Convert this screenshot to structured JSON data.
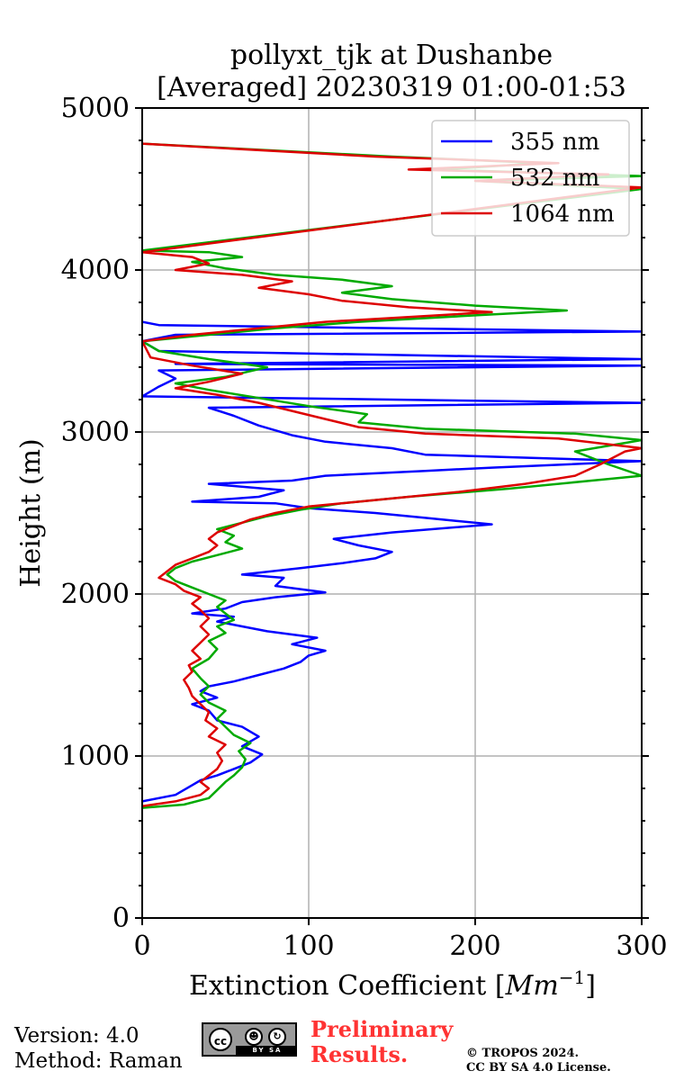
{
  "chart_data": {
    "type": "line",
    "title": [
      "pollyxt_tjk at Dushanbe",
      "[Averaged] 20230319 01:00-01:53"
    ],
    "xlabel": "Extinction Coefficient [",
    "xlabel_unit": "Mm",
    "xlabel_exp": "−1",
    "xlabel_end": "]",
    "ylabel": "Height (m)",
    "xlim": [
      0,
      300
    ],
    "ylim": [
      0,
      5000
    ],
    "xticks": [
      0,
      100,
      200,
      300
    ],
    "yticks": [
      0,
      1000,
      2000,
      3000,
      4000,
      5000
    ],
    "grid": true,
    "legend_position": "top-right",
    "series": [
      {
        "name": "355 nm",
        "color": "#0000ff",
        "points": [
          [
            0,
            720
          ],
          [
            20,
            760
          ],
          [
            30,
            820
          ],
          [
            35,
            850
          ],
          [
            45,
            880
          ],
          [
            55,
            920
          ],
          [
            65,
            960
          ],
          [
            72,
            1010
          ],
          [
            60,
            1060
          ],
          [
            70,
            1120
          ],
          [
            60,
            1180
          ],
          [
            45,
            1220
          ],
          [
            40,
            1280
          ],
          [
            30,
            1320
          ],
          [
            45,
            1360
          ],
          [
            35,
            1400
          ],
          [
            40,
            1430
          ],
          [
            55,
            1460
          ],
          [
            70,
            1500
          ],
          [
            85,
            1540
          ],
          [
            95,
            1580
          ],
          [
            100,
            1620
          ],
          [
            110,
            1650
          ],
          [
            90,
            1690
          ],
          [
            105,
            1730
          ],
          [
            75,
            1770
          ],
          [
            60,
            1800
          ],
          [
            45,
            1830
          ],
          [
            55,
            1860
          ],
          [
            30,
            1880
          ],
          [
            50,
            1910
          ],
          [
            60,
            1950
          ],
          [
            80,
            1980
          ],
          [
            110,
            2010
          ],
          [
            80,
            2050
          ],
          [
            85,
            2100
          ],
          [
            60,
            2120
          ],
          [
            95,
            2160
          ],
          [
            120,
            2190
          ],
          [
            140,
            2220
          ],
          [
            150,
            2260
          ],
          [
            130,
            2300
          ],
          [
            115,
            2340
          ],
          [
            150,
            2380
          ],
          [
            210,
            2430
          ],
          [
            170,
            2470
          ],
          [
            140,
            2500
          ],
          [
            100,
            2530
          ],
          [
            80,
            2560
          ],
          [
            30,
            2570
          ],
          [
            70,
            2600
          ],
          [
            85,
            2640
          ],
          [
            40,
            2680
          ],
          [
            90,
            2700
          ],
          [
            110,
            2730
          ],
          [
            170,
            2760
          ],
          [
            210,
            2780
          ],
          [
            300,
            2820
          ],
          [
            170,
            2860
          ],
          [
            150,
            2900
          ],
          [
            110,
            2940
          ],
          [
            90,
            2980
          ],
          [
            70,
            3040
          ],
          [
            55,
            3100
          ],
          [
            40,
            3150
          ],
          [
            300,
            3180
          ],
          [
            0,
            3220
          ],
          [
            10,
            3280
          ],
          [
            20,
            3330
          ],
          [
            10,
            3380
          ],
          [
            300,
            3410
          ],
          [
            20,
            3420
          ],
          [
            300,
            3450
          ],
          [
            10,
            3500
          ],
          [
            0,
            3560
          ],
          [
            20,
            3600
          ],
          [
            300,
            3620
          ],
          [
            10,
            3660
          ],
          [
            0,
            3680
          ]
        ]
      },
      {
        "name": "532 nm",
        "color": "#00aa00",
        "points": [
          [
            0,
            680
          ],
          [
            25,
            700
          ],
          [
            40,
            740
          ],
          [
            45,
            790
          ],
          [
            50,
            840
          ],
          [
            55,
            880
          ],
          [
            60,
            930
          ],
          [
            62,
            980
          ],
          [
            58,
            1030
          ],
          [
            65,
            1080
          ],
          [
            55,
            1130
          ],
          [
            50,
            1180
          ],
          [
            45,
            1230
          ],
          [
            50,
            1280
          ],
          [
            40,
            1330
          ],
          [
            35,
            1380
          ],
          [
            40,
            1430
          ],
          [
            35,
            1480
          ],
          [
            30,
            1540
          ],
          [
            40,
            1600
          ],
          [
            45,
            1660
          ],
          [
            40,
            1710
          ],
          [
            50,
            1760
          ],
          [
            45,
            1800
          ],
          [
            55,
            1840
          ],
          [
            50,
            1880
          ],
          [
            45,
            1920
          ],
          [
            50,
            1960
          ],
          [
            40,
            2000
          ],
          [
            30,
            2040
          ],
          [
            20,
            2080
          ],
          [
            15,
            2120
          ],
          [
            20,
            2160
          ],
          [
            30,
            2200
          ],
          [
            45,
            2240
          ],
          [
            60,
            2280
          ],
          [
            50,
            2320
          ],
          [
            55,
            2360
          ],
          [
            45,
            2400
          ],
          [
            60,
            2440
          ],
          [
            75,
            2480
          ],
          [
            95,
            2520
          ],
          [
            120,
            2560
          ],
          [
            160,
            2600
          ],
          [
            220,
            2650
          ],
          [
            270,
            2700
          ],
          [
            300,
            2730
          ],
          [
            280,
            2800
          ],
          [
            260,
            2880
          ],
          [
            300,
            2950
          ],
          [
            260,
            2990
          ],
          [
            170,
            3020
          ],
          [
            130,
            3060
          ],
          [
            135,
            3110
          ],
          [
            100,
            3160
          ],
          [
            70,
            3210
          ],
          [
            40,
            3260
          ],
          [
            20,
            3300
          ],
          [
            50,
            3340
          ],
          [
            75,
            3400
          ],
          [
            40,
            3450
          ],
          [
            10,
            3500
          ],
          [
            0,
            3560
          ],
          [
            40,
            3600
          ],
          [
            80,
            3640
          ],
          [
            130,
            3680
          ],
          [
            200,
            3720
          ],
          [
            255,
            3750
          ],
          [
            200,
            3780
          ],
          [
            150,
            3820
          ],
          [
            120,
            3860
          ],
          [
            150,
            3900
          ],
          [
            120,
            3940
          ],
          [
            80,
            3970
          ],
          [
            50,
            4010
          ],
          [
            30,
            4050
          ],
          [
            60,
            4080
          ],
          [
            40,
            4110
          ],
          [
            0,
            4120
          ],
          [
            300,
            4500
          ],
          [
            200,
            4550
          ],
          [
            300,
            4580
          ],
          [
            180,
            4620
          ],
          [
            240,
            4660
          ],
          [
            150,
            4700
          ],
          [
            0,
            4780
          ]
        ]
      },
      {
        "name": "1064 nm",
        "color": "#dd0000",
        "points": [
          [
            0,
            690
          ],
          [
            20,
            720
          ],
          [
            35,
            760
          ],
          [
            40,
            800
          ],
          [
            35,
            840
          ],
          [
            40,
            880
          ],
          [
            45,
            920
          ],
          [
            48,
            970
          ],
          [
            45,
            1020
          ],
          [
            50,
            1070
          ],
          [
            40,
            1120
          ],
          [
            45,
            1170
          ],
          [
            38,
            1220
          ],
          [
            40,
            1270
          ],
          [
            35,
            1320
          ],
          [
            30,
            1370
          ],
          [
            28,
            1420
          ],
          [
            25,
            1470
          ],
          [
            30,
            1520
          ],
          [
            28,
            1560
          ],
          [
            35,
            1600
          ],
          [
            30,
            1650
          ],
          [
            35,
            1700
          ],
          [
            40,
            1750
          ],
          [
            35,
            1800
          ],
          [
            40,
            1850
          ],
          [
            35,
            1900
          ],
          [
            30,
            1940
          ],
          [
            35,
            1980
          ],
          [
            25,
            2020
          ],
          [
            20,
            2060
          ],
          [
            10,
            2100
          ],
          [
            15,
            2140
          ],
          [
            20,
            2180
          ],
          [
            30,
            2220
          ],
          [
            40,
            2260
          ],
          [
            45,
            2300
          ],
          [
            40,
            2340
          ],
          [
            45,
            2380
          ],
          [
            55,
            2420
          ],
          [
            65,
            2460
          ],
          [
            80,
            2500
          ],
          [
            100,
            2540
          ],
          [
            140,
            2580
          ],
          [
            190,
            2630
          ],
          [
            230,
            2680
          ],
          [
            260,
            2730
          ],
          [
            275,
            2800
          ],
          [
            290,
            2880
          ],
          [
            300,
            2900
          ],
          [
            250,
            2960
          ],
          [
            170,
            2990
          ],
          [
            130,
            3030
          ],
          [
            110,
            3080
          ],
          [
            90,
            3130
          ],
          [
            70,
            3180
          ],
          [
            45,
            3230
          ],
          [
            20,
            3270
          ],
          [
            40,
            3310
          ],
          [
            60,
            3360
          ],
          [
            30,
            3410
          ],
          [
            5,
            3460
          ],
          [
            0,
            3560
          ],
          [
            30,
            3600
          ],
          [
            70,
            3640
          ],
          [
            110,
            3680
          ],
          [
            160,
            3710
          ],
          [
            210,
            3740
          ],
          [
            160,
            3770
          ],
          [
            120,
            3810
          ],
          [
            100,
            3850
          ],
          [
            70,
            3890
          ],
          [
            90,
            3930
          ],
          [
            60,
            3970
          ],
          [
            20,
            4000
          ],
          [
            40,
            4040
          ],
          [
            30,
            4080
          ],
          [
            0,
            4110
          ],
          [
            300,
            4510
          ],
          [
            200,
            4550
          ],
          [
            280,
            4590
          ],
          [
            160,
            4620
          ],
          [
            250,
            4660
          ],
          [
            140,
            4700
          ],
          [
            0,
            4780
          ]
        ]
      }
    ]
  },
  "footer": {
    "version": "Version: 4.0",
    "method": "Method: Raman",
    "preliminary_line1": "Preliminary",
    "preliminary_line2": "Results.",
    "copyright_line1": "© TROPOS 2024.",
    "copyright_line2": "CC BY SA 4.0 License.",
    "cc_badge_icon": "cc-by-sa-icon",
    "cc_text": "cc",
    "cc_strip": "BY SA"
  }
}
